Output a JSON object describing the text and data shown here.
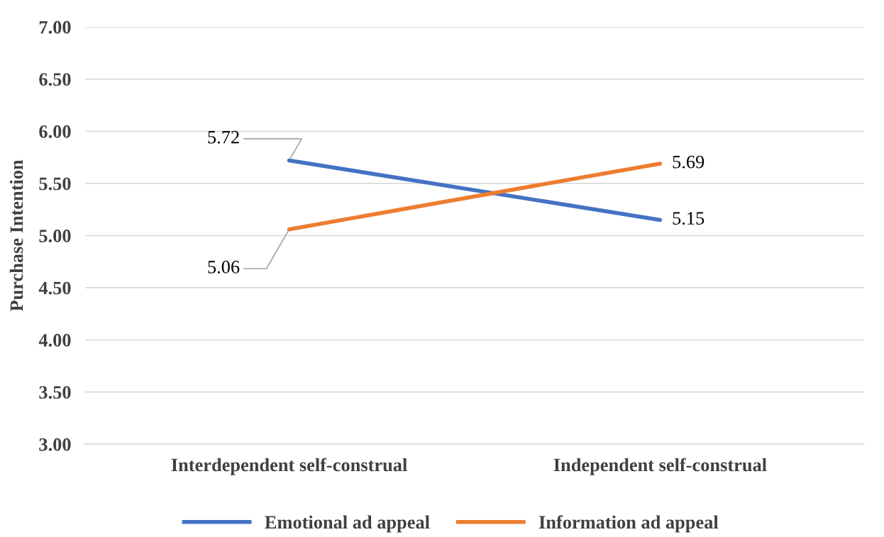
{
  "chart_data": {
    "type": "line",
    "ylabel": "Purchase Intention",
    "categories": [
      "Interdependent self-construal",
      "Independent self-construal"
    ],
    "series": [
      {
        "name": "Emotional ad appeal",
        "color": "#4472c4",
        "values": [
          5.72,
          5.15
        ]
      },
      {
        "name": "Information ad appeal",
        "color": "#ed7d31",
        "values": [
          5.06,
          5.69
        ]
      }
    ],
    "ylim": [
      3.0,
      7.0
    ],
    "yticks": [
      {
        "value": 3.0,
        "label": "3.00"
      },
      {
        "value": 3.5,
        "label": "3.50"
      },
      {
        "value": 4.0,
        "label": "4.00"
      },
      {
        "value": 4.5,
        "label": "4.50"
      },
      {
        "value": 5.0,
        "label": "5.00"
      },
      {
        "value": 5.5,
        "label": "5.50"
      },
      {
        "value": 6.0,
        "label": "6.00"
      },
      {
        "value": 6.5,
        "label": "6.50"
      },
      {
        "value": 7.0,
        "label": "7.00"
      }
    ],
    "grid": "y",
    "legend": "bottom",
    "data_labels": true,
    "marker": "none",
    "line_style": "solid"
  }
}
